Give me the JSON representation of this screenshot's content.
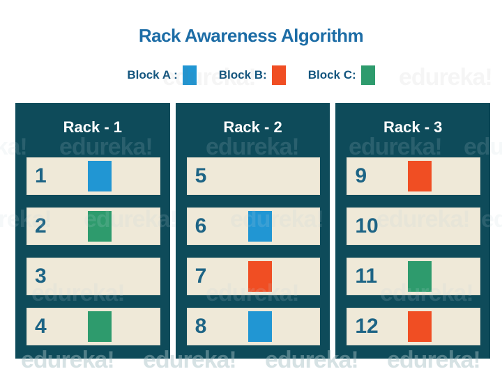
{
  "title": "Rack Awareness Algorithm",
  "watermark_text": "edureka!",
  "legend": {
    "items": [
      {
        "label": "Block A :",
        "block": "A"
      },
      {
        "label": "Block B:",
        "block": "B"
      },
      {
        "label": "Block C:",
        "block": "C"
      }
    ]
  },
  "block_colors": {
    "A": "#2196d3",
    "B": "#f04e23",
    "C": "#2e9b6d"
  },
  "racks": [
    {
      "name": "Rack - 1",
      "slots": [
        {
          "number": "1",
          "block": "A"
        },
        {
          "number": "2",
          "block": "C"
        },
        {
          "number": "3",
          "block": null
        },
        {
          "number": "4",
          "block": "C"
        }
      ]
    },
    {
      "name": "Rack - 2",
      "slots": [
        {
          "number": "5",
          "block": null
        },
        {
          "number": "6",
          "block": "A"
        },
        {
          "number": "7",
          "block": "B"
        },
        {
          "number": "8",
          "block": "A"
        }
      ]
    },
    {
      "name": "Rack - 3",
      "slots": [
        {
          "number": "9",
          "block": "B"
        },
        {
          "number": "10",
          "block": null
        },
        {
          "number": "11",
          "block": "C"
        },
        {
          "number": "12",
          "block": "B"
        }
      ]
    }
  ],
  "colors": {
    "title_text": "#1d6da6",
    "legend_text": "#14567f",
    "rack_panel": "#0e4b5a",
    "slot_background": "#efe9d8",
    "slot_number_text": "#1d6485",
    "rack_title_text": "#ffffff"
  }
}
